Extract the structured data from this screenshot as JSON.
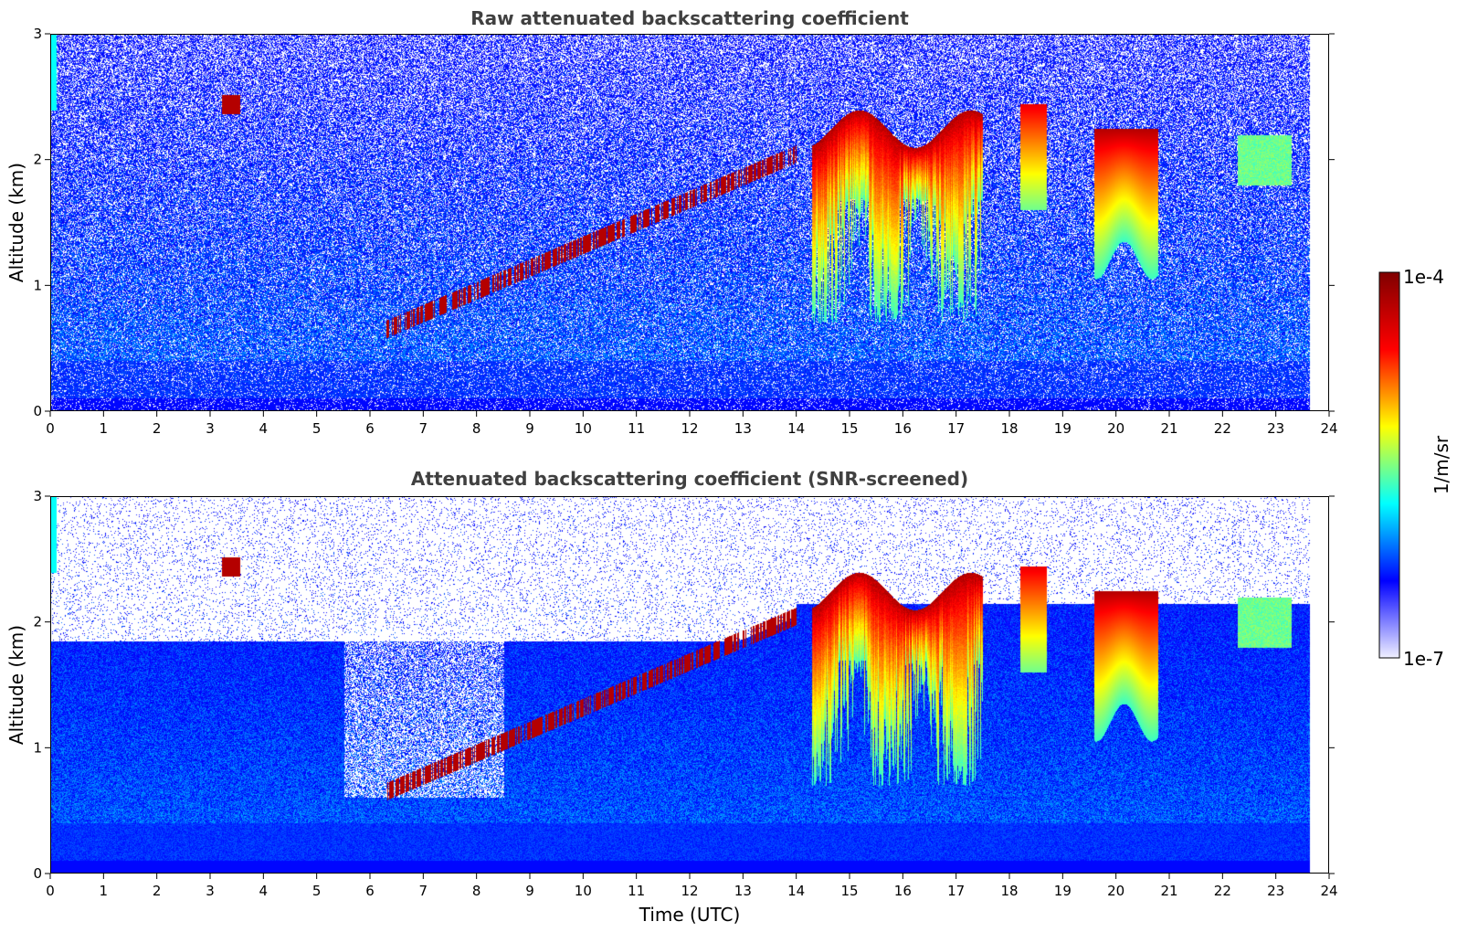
{
  "chart_data": [
    {
      "type": "heatmap",
      "title": "Raw attenuated backscattering coefficient",
      "xlabel": "",
      "ylabel": "Altitude (km)",
      "xlim": [
        0,
        24
      ],
      "ylim": [
        0,
        3
      ],
      "xticks": [
        "0",
        "1",
        "2",
        "3",
        "4",
        "5",
        "6",
        "7",
        "8",
        "9",
        "10",
        "11",
        "12",
        "13",
        "14",
        "15",
        "16",
        "17",
        "18",
        "19",
        "20",
        "21",
        "22",
        "23",
        "24"
      ],
      "yticks": [
        "0",
        "1",
        "2",
        "3"
      ],
      "data_end_hour": 23.65,
      "screened": false
    },
    {
      "type": "heatmap",
      "title": "Attenuated backscattering coefficient (SNR-screened)",
      "xlabel": "Time (UTC)",
      "ylabel": "Altitude (km)",
      "xlim": [
        0,
        24
      ],
      "ylim": [
        0,
        3
      ],
      "xticks": [
        "0",
        "1",
        "2",
        "3",
        "4",
        "5",
        "6",
        "7",
        "8",
        "9",
        "10",
        "11",
        "12",
        "13",
        "14",
        "15",
        "16",
        "17",
        "18",
        "19",
        "20",
        "21",
        "22",
        "23",
        "24"
      ],
      "yticks": [
        "0",
        "1",
        "2",
        "3"
      ],
      "data_end_hour": 23.65,
      "screened": true
    }
  ],
  "colorbar": {
    "label": "1/m/sr",
    "max_label": "1e-4",
    "min_label": "1e-7",
    "scale": "log",
    "colormap": "jet",
    "colors": [
      "#f0f0ff",
      "#0000ff",
      "#00ffff",
      "#ffff00",
      "#ff0000",
      "#800000"
    ]
  }
}
